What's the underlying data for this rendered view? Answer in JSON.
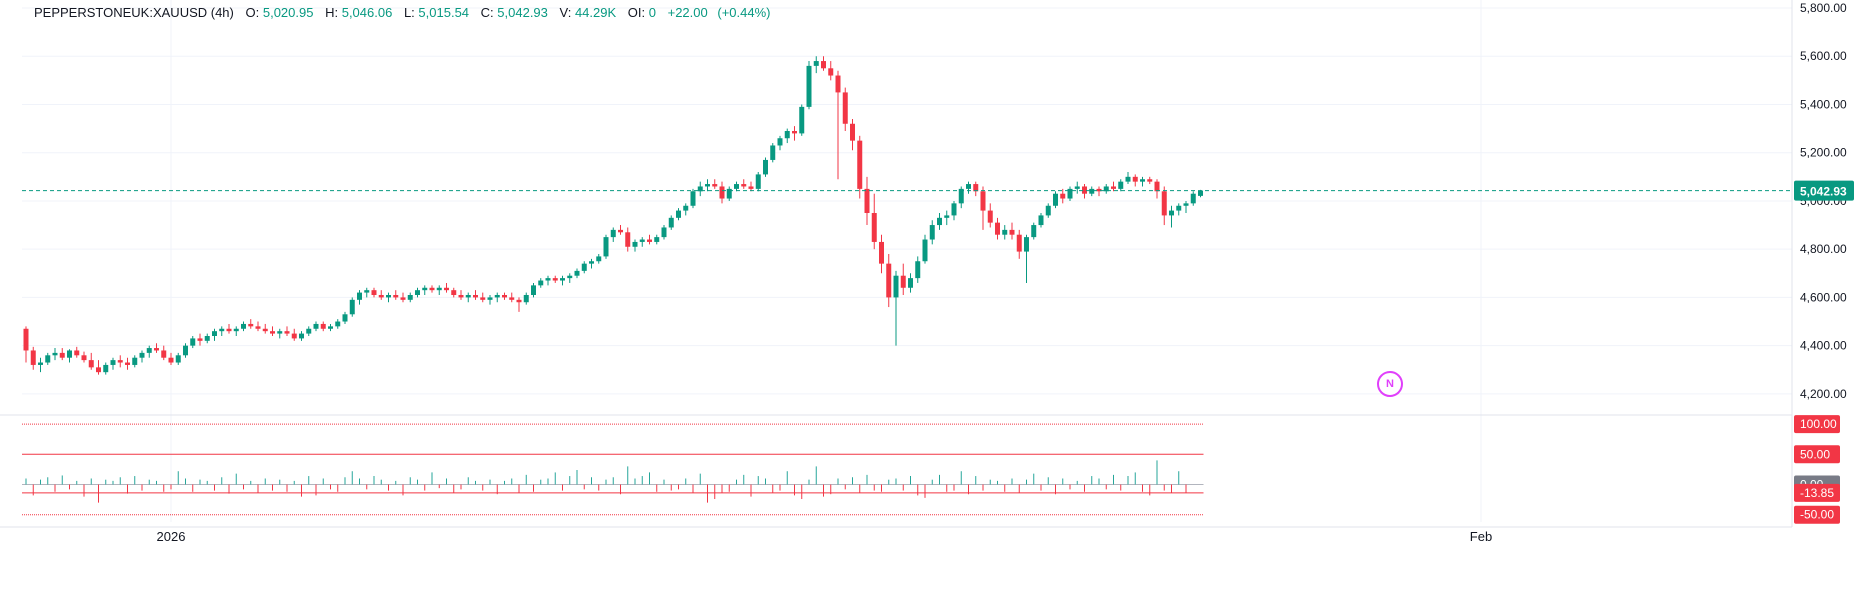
{
  "legend": {
    "symbol": "PEPPERSTONEUK:XAUUSD (4h)",
    "open_label": "O:",
    "open": "5,020.95",
    "high_label": "H:",
    "high": "5,046.06",
    "low_label": "L:",
    "low": "5,015.54",
    "close_label": "C:",
    "close": "5,042.93",
    "volume_label": "V:",
    "volume": "44.29K",
    "oi_label": "OI:",
    "oi": "0",
    "change": "+22.00",
    "change_pct": "(+0.44%)"
  },
  "badge": {
    "label": "N"
  },
  "colors": {
    "up": "#089981",
    "down": "#f23645",
    "grid": "#f0f3fa",
    "last_price": "#089981"
  },
  "chart_data": [
    {
      "type": "candlestick",
      "title": "",
      "ylim": [
        4100,
        5800
      ],
      "y_ticks": [
        "5,800.00",
        "5,600.00",
        "5,400.00",
        "5,200.00",
        "5,000.00",
        "4,800.00",
        "4,600.00",
        "4,400.00",
        "4,200.00"
      ],
      "x_tick_labels": [
        {
          "label": "2026",
          "index": 20
        },
        {
          "label": "Feb",
          "index": 200
        }
      ],
      "last_price": 5042.93,
      "last_price_label": "5,042.93",
      "candles_note": "O,H,L,C per 4h bar",
      "candles": [
        [
          4470,
          4480,
          4330,
          4380
        ],
        [
          4380,
          4395,
          4300,
          4320
        ],
        [
          4320,
          4350,
          4290,
          4330
        ],
        [
          4330,
          4370,
          4320,
          4360
        ],
        [
          4360,
          4390,
          4340,
          4370
        ],
        [
          4370,
          4390,
          4340,
          4350
        ],
        [
          4350,
          4385,
          4330,
          4380
        ],
        [
          4380,
          4395,
          4350,
          4360
        ],
        [
          4360,
          4375,
          4330,
          4340
        ],
        [
          4340,
          4370,
          4300,
          4310
        ],
        [
          4310,
          4340,
          4280,
          4290
        ],
        [
          4290,
          4330,
          4280,
          4320
        ],
        [
          4320,
          4350,
          4300,
          4340
        ],
        [
          4340,
          4360,
          4310,
          4330
        ],
        [
          4330,
          4350,
          4300,
          4320
        ],
        [
          4320,
          4360,
          4310,
          4350
        ],
        [
          4350,
          4380,
          4330,
          4370
        ],
        [
          4370,
          4400,
          4350,
          4390
        ],
        [
          4390,
          4410,
          4370,
          4380
        ],
        [
          4380,
          4400,
          4340,
          4350
        ],
        [
          4350,
          4370,
          4320,
          4330
        ],
        [
          4330,
          4370,
          4320,
          4360
        ],
        [
          4360,
          4410,
          4350,
          4400
        ],
        [
          4400,
          4440,
          4390,
          4430
        ],
        [
          4430,
          4450,
          4400,
          4420
        ],
        [
          4420,
          4450,
          4410,
          4440
        ],
        [
          4440,
          4470,
          4420,
          4460
        ],
        [
          4460,
          4480,
          4440,
          4470
        ],
        [
          4470,
          4490,
          4450,
          4460
        ],
        [
          4460,
          4480,
          4440,
          4470
        ],
        [
          4470,
          4500,
          4460,
          4490
        ],
        [
          4490,
          4510,
          4470,
          4480
        ],
        [
          4480,
          4500,
          4460,
          4470
        ],
        [
          4470,
          4490,
          4450,
          4460
        ],
        [
          4460,
          4480,
          4440,
          4450
        ],
        [
          4450,
          4470,
          4430,
          4460
        ],
        [
          4460,
          4480,
          4440,
          4450
        ],
        [
          4450,
          4470,
          4420,
          4430
        ],
        [
          4430,
          4460,
          4420,
          4450
        ],
        [
          4450,
          4480,
          4440,
          4470
        ],
        [
          4470,
          4500,
          4460,
          4490
        ],
        [
          4490,
          4500,
          4460,
          4470
        ],
        [
          4470,
          4490,
          4460,
          4480
        ],
        [
          4480,
          4510,
          4470,
          4500
        ],
        [
          4500,
          4540,
          4490,
          4530
        ],
        [
          4530,
          4600,
          4520,
          4590
        ],
        [
          4590,
          4630,
          4570,
          4620
        ],
        [
          4620,
          4640,
          4600,
          4630
        ],
        [
          4630,
          4640,
          4600,
          4610
        ],
        [
          4610,
          4630,
          4590,
          4600
        ],
        [
          4600,
          4620,
          4580,
          4610
        ],
        [
          4610,
          4630,
          4590,
          4600
        ],
        [
          4600,
          4620,
          4580,
          4590
        ],
        [
          4590,
          4620,
          4580,
          4610
        ],
        [
          4610,
          4640,
          4600,
          4630
        ],
        [
          4630,
          4650,
          4610,
          4640
        ],
        [
          4640,
          4650,
          4620,
          4630
        ],
        [
          4630,
          4650,
          4610,
          4640
        ],
        [
          4640,
          4660,
          4620,
          4630
        ],
        [
          4630,
          4640,
          4600,
          4610
        ],
        [
          4610,
          4630,
          4590,
          4600
        ],
        [
          4600,
          4620,
          4580,
          4610
        ],
        [
          4610,
          4630,
          4590,
          4600
        ],
        [
          4600,
          4620,
          4580,
          4590
        ],
        [
          4590,
          4610,
          4570,
          4600
        ],
        [
          4600,
          4620,
          4580,
          4610
        ],
        [
          4610,
          4620,
          4590,
          4600
        ],
        [
          4600,
          4620,
          4580,
          4590
        ],
        [
          4590,
          4600,
          4540,
          4580
        ],
        [
          4580,
          4620,
          4570,
          4610
        ],
        [
          4610,
          4660,
          4600,
          4650
        ],
        [
          4650,
          4680,
          4640,
          4670
        ],
        [
          4670,
          4690,
          4650,
          4680
        ],
        [
          4680,
          4690,
          4660,
          4670
        ],
        [
          4670,
          4690,
          4650,
          4680
        ],
        [
          4680,
          4700,
          4660,
          4690
        ],
        [
          4690,
          4720,
          4680,
          4710
        ],
        [
          4710,
          4750,
          4700,
          4740
        ],
        [
          4740,
          4760,
          4720,
          4750
        ],
        [
          4750,
          4780,
          4740,
          4770
        ],
        [
          4770,
          4860,
          4760,
          4850
        ],
        [
          4850,
          4890,
          4830,
          4880
        ],
        [
          4880,
          4900,
          4860,
          4870
        ],
        [
          4870,
          4890,
          4790,
          4810
        ],
        [
          4810,
          4840,
          4790,
          4830
        ],
        [
          4830,
          4850,
          4810,
          4840
        ],
        [
          4840,
          4860,
          4820,
          4830
        ],
        [
          4830,
          4860,
          4820,
          4850
        ],
        [
          4850,
          4900,
          4840,
          4890
        ],
        [
          4890,
          4940,
          4880,
          4930
        ],
        [
          4930,
          4970,
          4920,
          4960
        ],
        [
          4960,
          4990,
          4940,
          4980
        ],
        [
          4980,
          5050,
          4970,
          5040
        ],
        [
          5040,
          5080,
          5020,
          5060
        ],
        [
          5060,
          5090,
          5040,
          5070
        ],
        [
          5070,
          5090,
          5050,
          5060
        ],
        [
          5060,
          5080,
          4990,
          5010
        ],
        [
          5010,
          5060,
          5000,
          5050
        ],
        [
          5050,
          5080,
          5040,
          5070
        ],
        [
          5070,
          5090,
          5050,
          5060
        ],
        [
          5060,
          5080,
          5040,
          5050
        ],
        [
          5050,
          5120,
          5040,
          5110
        ],
        [
          5110,
          5180,
          5100,
          5170
        ],
        [
          5170,
          5240,
          5160,
          5230
        ],
        [
          5230,
          5270,
          5210,
          5260
        ],
        [
          5260,
          5300,
          5240,
          5290
        ],
        [
          5290,
          5310,
          5250,
          5280
        ],
        [
          5280,
          5400,
          5270,
          5390
        ],
        [
          5390,
          5580,
          5380,
          5560
        ],
        [
          5560,
          5600,
          5530,
          5580
        ],
        [
          5580,
          5600,
          5540,
          5550
        ],
        [
          5550,
          5580,
          5500,
          5520
        ],
        [
          5520,
          5540,
          5090,
          5450
        ],
        [
          5450,
          5470,
          5290,
          5320
        ],
        [
          5320,
          5340,
          5210,
          5250
        ],
        [
          5250,
          5270,
          5010,
          5050
        ],
        [
          5050,
          5100,
          4900,
          4950
        ],
        [
          4950,
          5030,
          4800,
          4830
        ],
        [
          4830,
          4860,
          4700,
          4740
        ],
        [
          4740,
          4780,
          4560,
          4600
        ],
        [
          4600,
          4710,
          4400,
          4690
        ],
        [
          4690,
          4740,
          4610,
          4640
        ],
        [
          4640,
          4700,
          4620,
          4680
        ],
        [
          4680,
          4770,
          4660,
          4750
        ],
        [
          4750,
          4860,
          4740,
          4840
        ],
        [
          4840,
          4920,
          4820,
          4900
        ],
        [
          4900,
          4950,
          4880,
          4930
        ],
        [
          4930,
          4960,
          4900,
          4940
        ],
        [
          4940,
          5000,
          4920,
          4990
        ],
        [
          4990,
          5060,
          4970,
          5050
        ],
        [
          5050,
          5080,
          5030,
          5070
        ],
        [
          5070,
          5080,
          5020,
          5040
        ],
        [
          5040,
          5060,
          4880,
          4960
        ],
        [
          4960,
          4990,
          4890,
          4910
        ],
        [
          4910,
          4930,
          4840,
          4860
        ],
        [
          4860,
          4900,
          4840,
          4880
        ],
        [
          4880,
          4910,
          4840,
          4860
        ],
        [
          4860,
          4880,
          4760,
          4790
        ],
        [
          4790,
          4860,
          4660,
          4850
        ],
        [
          4850,
          4910,
          4840,
          4900
        ],
        [
          4900,
          4950,
          4890,
          4940
        ],
        [
          4940,
          4990,
          4930,
          4980
        ],
        [
          4980,
          5040,
          4970,
          5030
        ],
        [
          5030,
          5050,
          4990,
          5010
        ],
        [
          5010,
          5060,
          5000,
          5050
        ],
        [
          5050,
          5080,
          5030,
          5060
        ],
        [
          5060,
          5070,
          5010,
          5030
        ],
        [
          5030,
          5060,
          5020,
          5050
        ],
        [
          5050,
          5060,
          5020,
          5040
        ],
        [
          5040,
          5070,
          5030,
          5060
        ],
        [
          5060,
          5080,
          5040,
          5050
        ],
        [
          5050,
          5090,
          5040,
          5080
        ],
        [
          5080,
          5120,
          5070,
          5100
        ],
        [
          5100,
          5110,
          5060,
          5080
        ],
        [
          5080,
          5100,
          5060,
          5090
        ],
        [
          5090,
          5100,
          5070,
          5080
        ],
        [
          5080,
          5090,
          5010,
          5040
        ],
        [
          5040,
          5060,
          4900,
          4940
        ],
        [
          4940,
          4980,
          4890,
          4960
        ],
        [
          4960,
          4990,
          4940,
          4980
        ],
        [
          4980,
          5000,
          4950,
          4990
        ],
        [
          4990,
          5040,
          4980,
          5030
        ],
        [
          5020.95,
          5046.06,
          5015.54,
          5042.93
        ]
      ]
    },
    {
      "type": "histogram",
      "title": "",
      "ylim": [
        -62,
        115
      ],
      "levels": [
        100,
        50,
        -13.85,
        -50
      ],
      "level_labels": [
        "100.00",
        "50.00",
        "0.00",
        "-13.85",
        "-50.00"
      ],
      "values": [
        10,
        -18,
        8,
        12,
        -12,
        15,
        -8,
        6,
        -20,
        10,
        -30,
        8,
        6,
        12,
        -15,
        14,
        -10,
        8,
        6,
        -12,
        -8,
        22,
        10,
        -12,
        8,
        6,
        -10,
        12,
        -15,
        18,
        -8,
        6,
        -14,
        10,
        -10,
        8,
        -12,
        6,
        -20,
        14,
        -18,
        10,
        -8,
        -12,
        12,
        22,
        10,
        -8,
        14,
        8,
        -10,
        6,
        -18,
        12,
        8,
        -10,
        20,
        -6,
        10,
        -14,
        -8,
        12,
        6,
        -10,
        8,
        -16,
        6,
        10,
        -14,
        16,
        -12,
        8,
        10,
        20,
        -10,
        14,
        24,
        -8,
        12,
        -10,
        8,
        12,
        -16,
        30,
        10,
        14,
        20,
        -12,
        8,
        -10,
        -8,
        10,
        -14,
        18,
        -30,
        -24,
        -14,
        -12,
        8,
        16,
        -20,
        14,
        10,
        -14,
        -10,
        22,
        -18,
        -24,
        8,
        30,
        -20,
        -16,
        10,
        -8,
        12,
        -14,
        16,
        -10,
        -12,
        8,
        10,
        -10,
        14,
        -18,
        -22,
        8,
        16,
        -12,
        -10,
        22,
        -16,
        14,
        -10,
        8,
        6,
        -12,
        10,
        -14,
        8,
        18,
        -10,
        12,
        -16,
        10,
        -8,
        6,
        -12,
        14,
        10,
        -8,
        16,
        -10,
        14,
        20,
        -12,
        -18,
        40,
        -10,
        -14,
        22,
        -14
      ]
    }
  ]
}
